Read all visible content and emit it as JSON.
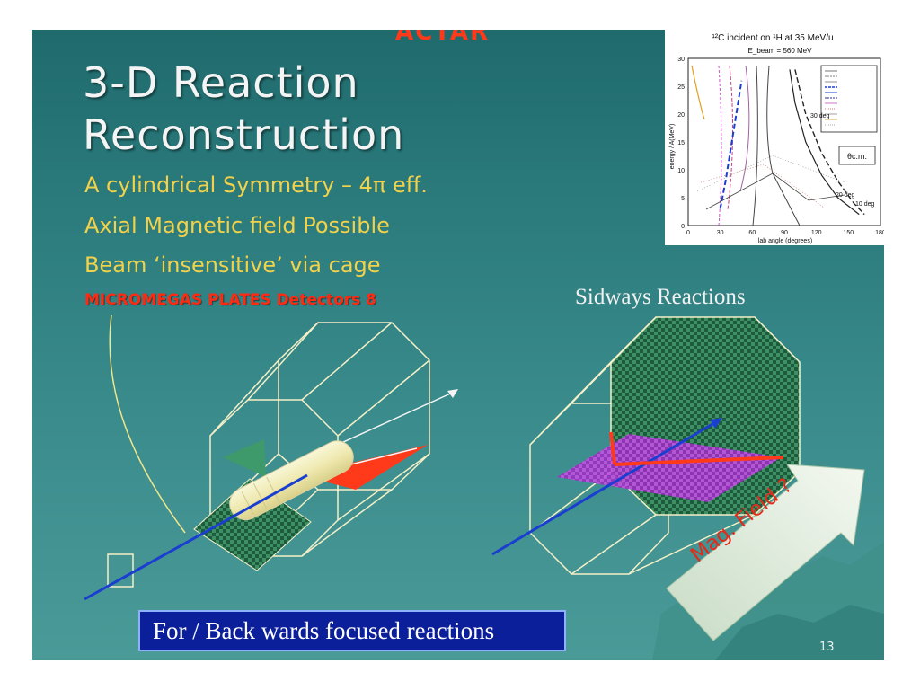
{
  "slide": {
    "title_line1": "3-D Reaction",
    "title_line2": "Reconstruction",
    "bullets": [
      "A cylindrical Symmetry – 4π eff.",
      "Axial Magnetic field Possible",
      "Beam ‘insensitive’ via cage"
    ],
    "detector_note": "MICROMEGAS  PLATES  Detectors 8",
    "sideways_label": "Sidways Reactions",
    "mag_field_label": "Mag. Field ?",
    "footer_text": "For / Back wards focused reactions",
    "page_number": "13",
    "top_fragment": "ACTAR"
  },
  "colors": {
    "background_top": "#1f6a6c",
    "background_bottom": "#4a9a98",
    "bullet_text": "#f2d24a",
    "detector_note": "#ff2a12",
    "footer_box": "#0c1f9a",
    "green_plate": "#2e7a52",
    "magenta_plane": "#b040d0",
    "red_plate": "#ff3a1a"
  },
  "chart_data": {
    "type": "line",
    "title": "¹²C incident on ¹H at 35 MeV/u",
    "subtitle": "E_beam = 560 MeV",
    "xlabel": "lab angle (degrees)",
    "ylabel": "energy / A(MeV)",
    "xlim": [
      0,
      180
    ],
    "ylim": [
      0,
      30
    ],
    "x_ticks": [
      "0",
      "30",
      "60",
      "90",
      "120",
      "150",
      "180"
    ],
    "y_ticks": [
      "0",
      "5",
      "10",
      "15",
      "20",
      "25",
      "30"
    ],
    "legend_position": "top-right",
    "annotations": [
      "30 deg",
      "20 deg",
      "10 deg",
      "θc.m."
    ],
    "series": [
      {
        "style": "blue-dashed",
        "x": [
          30,
          35,
          40,
          45,
          50
        ],
        "y": [
          3,
          8,
          14,
          20,
          26
        ]
      },
      {
        "style": "black-dashed",
        "x": [
          100,
          110,
          125,
          140,
          155,
          165
        ],
        "y": [
          28,
          20,
          13,
          8,
          4,
          2
        ]
      },
      {
        "style": "black-solid",
        "x": [
          95,
          100,
          110,
          125,
          140,
          160
        ],
        "y": [
          28,
          22,
          15,
          9,
          5,
          2
        ]
      }
    ]
  }
}
